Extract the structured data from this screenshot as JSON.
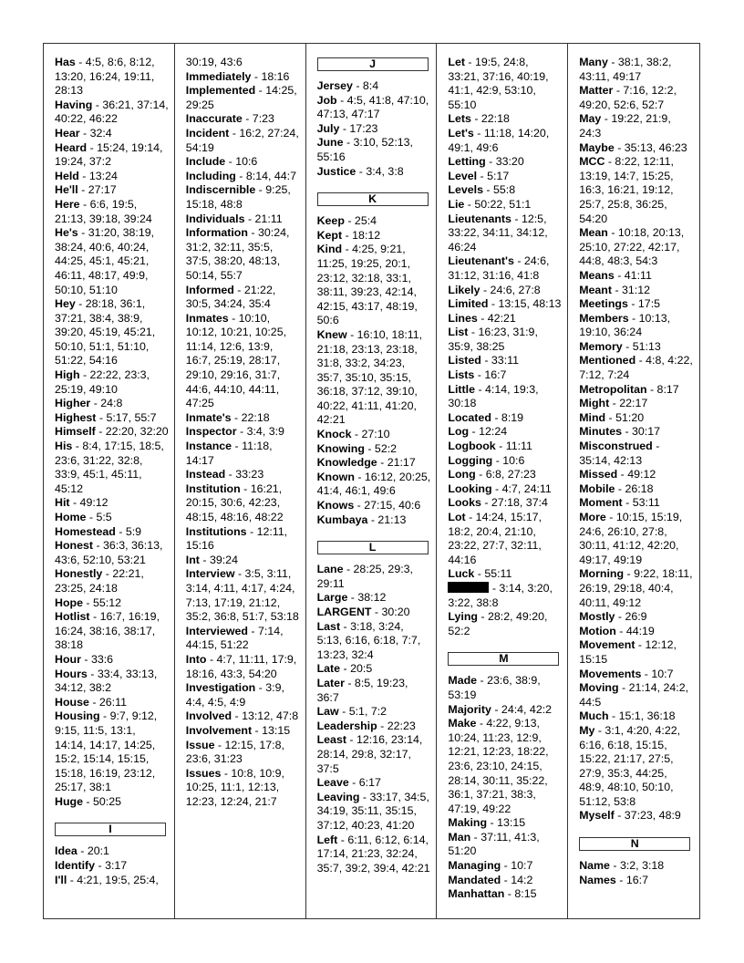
{
  "columns": [
    {
      "items": [
        {
          "term": "Has",
          "refs": "4:5, 8:6, 8:12, 13:20, 16:24, 19:11, 28:13"
        },
        {
          "term": "Having",
          "refs": "36:21, 37:14, 40:22, 46:22"
        },
        {
          "term": "Hear",
          "refs": "32:4"
        },
        {
          "term": "Heard",
          "refs": "15:24, 19:14, 19:24, 37:2"
        },
        {
          "term": "Held",
          "refs": "13:24"
        },
        {
          "term": "He'll",
          "refs": "27:17"
        },
        {
          "term": "Here",
          "refs": "6:6, 19:5, 21:13, 39:18, 39:24"
        },
        {
          "term": "He's",
          "refs": "31:20, 38:19, 38:24, 40:6, 40:24, 44:25, 45:1, 45:21, 46:11, 48:17, 49:9, 50:10, 51:10"
        },
        {
          "term": "Hey",
          "refs": "28:18, 36:1, 37:21, 38:4, 38:9, 39:20, 45:19, 45:21, 50:10, 51:1, 51:10, 51:22, 54:16"
        },
        {
          "term": "High",
          "refs": "22:22, 23:3, 25:19, 49:10"
        },
        {
          "term": "Higher",
          "refs": "24:8"
        },
        {
          "term": "Highest",
          "refs": "5:17, 55:7"
        },
        {
          "term": "Himself",
          "refs": "22:20, 32:20"
        },
        {
          "term": "His",
          "refs": "8:4, 17:15, 18:5, 23:6, 31:22, 32:8, 33:9, 45:1, 45:11, 45:12"
        },
        {
          "term": "Hit",
          "refs": "49:12"
        },
        {
          "term": "Home",
          "refs": "5:5"
        },
        {
          "term": "Homestead",
          "refs": "5:9"
        },
        {
          "term": "Honest",
          "refs": "36:3, 36:13, 43:6, 52:10, 53:21"
        },
        {
          "term": "Honestly",
          "refs": "22:21, 23:25, 24:18"
        },
        {
          "term": "Hope",
          "refs": "55:12"
        },
        {
          "term": "Hotlist",
          "refs": "16:7, 16:19, 16:24, 38:16, 38:17, 38:18"
        },
        {
          "term": "Hour",
          "refs": "33:6"
        },
        {
          "term": "Hours",
          "refs": "33:4, 33:13, 34:12, 38:2"
        },
        {
          "term": "House",
          "refs": "26:11"
        },
        {
          "term": "Housing",
          "refs": "9:7, 9:12, 9:15, 11:5, 13:1, 14:14, 14:17, 14:25, 15:2, 15:14, 15:15, 15:18, 16:19, 23:12, 25:17, 38:1"
        },
        {
          "term": "Huge",
          "refs": "50:25"
        },
        {
          "header": "I"
        },
        {
          "term": "Idea",
          "refs": "20:1"
        },
        {
          "term": "Identify",
          "refs": "3:17"
        },
        {
          "term": "I'll",
          "refs": "4:21, 19:5, 25:4,"
        }
      ]
    },
    {
      "items": [
        {
          "term": "",
          "refs": "30:19, 43:6"
        },
        {
          "term": "Immediately",
          "refs": "18:16"
        },
        {
          "term": "Implemented",
          "refs": "14:25, 29:25"
        },
        {
          "term": "Inaccurate",
          "refs": "7:23"
        },
        {
          "term": "Incident",
          "refs": "16:2, 27:24, 54:19"
        },
        {
          "term": "Include",
          "refs": "10:6"
        },
        {
          "term": "Including",
          "refs": "8:14, 44:7"
        },
        {
          "term": "Indiscernible",
          "refs": "9:25, 15:18, 48:8"
        },
        {
          "term": "Individuals",
          "refs": "21:11"
        },
        {
          "term": "Information",
          "refs": "30:24, 31:2, 32:11, 35:5, 37:5, 38:20, 48:13, 50:14, 55:7"
        },
        {
          "term": "Informed",
          "refs": "21:22, 30:5, 34:24, 35:4"
        },
        {
          "term": "Inmates",
          "refs": "10:10, 10:12, 10:21, 10:25, 11:14, 12:6, 13:9, 16:7, 25:19, 28:17, 29:10, 29:16, 31:7, 44:6, 44:10, 44:11, 47:25"
        },
        {
          "term": "Inmate's",
          "refs": "22:18"
        },
        {
          "term": "Inspector",
          "refs": "3:4, 3:9"
        },
        {
          "term": "Instance",
          "refs": "11:18, 14:17"
        },
        {
          "term": "Instead",
          "refs": "33:23"
        },
        {
          "term": "Institution",
          "refs": "16:21, 20:15, 30:6, 42:23, 48:15, 48:16, 48:22"
        },
        {
          "term": "Institutions",
          "refs": "12:11, 15:16"
        },
        {
          "term": "Int",
          "refs": "39:24"
        },
        {
          "term": "Interview",
          "refs": "3:5, 3:11, 3:14, 4:11, 4:17, 4:24, 7:13, 17:19, 21:12, 35:2, 36:8, 51:7, 53:18"
        },
        {
          "term": "Interviewed",
          "refs": "7:14, 44:15, 51:22"
        },
        {
          "term": "Into",
          "refs": "4:7, 11:11, 17:9, 18:16, 43:3, 54:20"
        },
        {
          "term": "Investigation",
          "refs": "3:9, 4:4, 4:5, 4:9"
        },
        {
          "term": "Involved",
          "refs": "13:12, 47:8"
        },
        {
          "term": "Involvement",
          "refs": "13:15"
        },
        {
          "term": "Issue",
          "refs": "12:15, 17:8, 23:6, 31:23"
        },
        {
          "term": "Issues",
          "refs": "10:8, 10:9, 10:25, 11:1, 12:13, 12:23, 12:24, 21:7"
        }
      ]
    },
    {
      "items": [
        {
          "header": "J"
        },
        {
          "term": "Jersey",
          "refs": "8:4"
        },
        {
          "term": "Job",
          "refs": "4:5, 41:8, 47:10, 47:13, 47:17"
        },
        {
          "term": "July",
          "refs": "17:23"
        },
        {
          "term": "June",
          "refs": "3:10, 52:13, 55:16"
        },
        {
          "term": "Justice",
          "refs": "3:4, 3:8"
        },
        {
          "header": "K"
        },
        {
          "term": "Keep",
          "refs": "25:4"
        },
        {
          "term": "Kept",
          "refs": "18:12"
        },
        {
          "term": "Kind",
          "refs": "4:25, 9:21, 11:25, 19:25, 20:1, 23:12, 32:18, 33:1, 38:11, 39:23, 42:14, 42:15, 43:17, 48:19, 50:6"
        },
        {
          "term": "Knew",
          "refs": "16:10, 18:11, 21:18, 23:13, 23:18, 31:8, 33:2, 34:23, 35:7, 35:10, 35:15, 36:18, 37:12, 39:10, 40:22, 41:11, 41:20, 42:21"
        },
        {
          "term": "Knock",
          "refs": "27:10"
        },
        {
          "term": "Knowing",
          "refs": "52:2"
        },
        {
          "term": "Knowledge",
          "refs": "21:17"
        },
        {
          "term": "Known",
          "refs": "16:12, 20:25, 41:4, 46:1, 49:6"
        },
        {
          "term": "Knows",
          "refs": "27:15, 40:6"
        },
        {
          "term": "Kumbaya",
          "refs": "21:13"
        },
        {
          "header": "L"
        },
        {
          "term": "Lane",
          "refs": "28:25, 29:3, 29:11"
        },
        {
          "term": "Large",
          "refs": "38:12"
        },
        {
          "term": "LARGENT",
          "refs": "30:20"
        },
        {
          "term": "Last",
          "refs": "3:18, 3:24, 5:13, 6:16, 6:18, 7:7, 13:23, 32:4"
        },
        {
          "term": "Late",
          "refs": "20:5"
        },
        {
          "term": "Later",
          "refs": "8:5, 19:23, 36:7"
        },
        {
          "term": "Law",
          "refs": "5:1, 7:2"
        },
        {
          "term": "Leadership",
          "refs": "22:23"
        },
        {
          "term": "Least",
          "refs": "12:16, 23:14, 28:14, 29:8, 32:17, 37:5"
        },
        {
          "term": "Leave",
          "refs": "6:17"
        },
        {
          "term": "Leaving",
          "refs": "33:17, 34:5, 34:19, 35:11, 35:15, 37:12, 40:23, 41:20"
        },
        {
          "term": "Left",
          "refs": "6:11, 6:12, 6:14, 17:14, 21:23, 32:24, 35:7, 39:2, 39:4, 42:21"
        }
      ]
    },
    {
      "items": [
        {
          "term": "Let",
          "refs": "19:5, 24:8, 33:21, 37:16, 40:19, 41:1, 42:9, 53:10, 55:10"
        },
        {
          "term": "Lets",
          "refs": "22:18"
        },
        {
          "term": "Let's",
          "refs": "11:18, 14:20, 49:1, 49:6"
        },
        {
          "term": "Letting",
          "refs": "33:20"
        },
        {
          "term": "Level",
          "refs": "5:17"
        },
        {
          "term": "Levels",
          "refs": "55:8"
        },
        {
          "term": "Lie",
          "refs": "50:22, 51:1"
        },
        {
          "term": "Lieutenants",
          "refs": "12:5, 33:22, 34:11, 34:12, 46:24"
        },
        {
          "term": "Lieutenant's",
          "refs": "24:6, 31:12, 31:16, 41:8"
        },
        {
          "term": "Likely",
          "refs": "24:6, 27:8"
        },
        {
          "term": "Limited",
          "refs": "13:15, 48:13"
        },
        {
          "term": "Lines",
          "refs": "42:21"
        },
        {
          "term": "List",
          "refs": "16:23, 31:9, 35:9, 38:25"
        },
        {
          "term": "Listed",
          "refs": "33:11"
        },
        {
          "term": "Lists",
          "refs": "16:7"
        },
        {
          "term": "Little",
          "refs": "4:14, 19:3, 30:18"
        },
        {
          "term": "Located",
          "refs": "8:19"
        },
        {
          "term": "Log",
          "refs": "12:24"
        },
        {
          "term": "Logbook",
          "refs": "11:11"
        },
        {
          "term": "Logging",
          "refs": "10:6"
        },
        {
          "term": "Long",
          "refs": "6:8, 27:23"
        },
        {
          "term": "Looking",
          "refs": "4:7, 24:11"
        },
        {
          "term": "Looks",
          "refs": "27:18, 37:4"
        },
        {
          "term": "Lot",
          "refs": "14:24, 15:17, 18:2, 20:4, 21:10, 23:22, 27:7, 32:11, 44:16"
        },
        {
          "term": "Luck",
          "refs": "55:11"
        },
        {
          "redacted": true,
          "refs": "3:14, 3:20, 3:22, 38:8"
        },
        {
          "term": "Lying",
          "refs": "28:2, 49:20, 52:2"
        },
        {
          "header": "M"
        },
        {
          "term": "Made",
          "refs": "23:6, 38:9, 53:19"
        },
        {
          "term": "Majority",
          "refs": "24:4, 42:2"
        },
        {
          "term": "Make",
          "refs": "4:22, 9:13, 10:24, 11:23, 12:9, 12:21, 12:23, 18:22, 23:6, 23:10, 24:15, 28:14, 30:11, 35:22, 36:1, 37:21, 38:3, 47:19, 49:22"
        },
        {
          "term": "Making",
          "refs": "13:15"
        },
        {
          "term": "Man",
          "refs": "37:11, 41:3, 51:20"
        },
        {
          "term": "Managing",
          "refs": "10:7"
        },
        {
          "term": "Mandated",
          "refs": "14:2"
        },
        {
          "term": "Manhattan",
          "refs": "8:15"
        }
      ]
    },
    {
      "items": [
        {
          "term": "Many",
          "refs": "38:1, 38:2, 43:11, 49:17"
        },
        {
          "term": "Matter",
          "refs": "7:16, 12:2, 49:20, 52:6, 52:7"
        },
        {
          "term": "May",
          "refs": "19:22, 21:9, 24:3"
        },
        {
          "term": "Maybe",
          "refs": "35:13, 46:23"
        },
        {
          "term": "MCC",
          "refs": "8:22, 12:11, 13:19, 14:7, 15:25, 16:3, 16:21, 19:12, 25:7, 25:8, 36:25, 54:20"
        },
        {
          "term": "Mean",
          "refs": "10:18, 20:13, 25:10, 27:22, 42:17, 44:8, 48:3, 54:3"
        },
        {
          "term": "Means",
          "refs": "41:11"
        },
        {
          "term": "Meant",
          "refs": "31:12"
        },
        {
          "term": "Meetings",
          "refs": "17:5"
        },
        {
          "term": "Members",
          "refs": "10:13, 19:10, 36:24"
        },
        {
          "term": "Memory",
          "refs": "51:13"
        },
        {
          "term": "Mentioned",
          "refs": "4:8, 4:22, 7:12, 7:24"
        },
        {
          "term": "Metropolitan",
          "refs": "8:17"
        },
        {
          "term": "Might",
          "refs": "22:17"
        },
        {
          "term": "Mind",
          "refs": "51:20"
        },
        {
          "term": "Minutes",
          "refs": "30:17"
        },
        {
          "term": "Misconstrued",
          "refs": "35:14, 42:13"
        },
        {
          "term": "Missed",
          "refs": "49:12"
        },
        {
          "term": "Mobile",
          "refs": "26:18"
        },
        {
          "term": "Moment",
          "refs": "53:11"
        },
        {
          "term": "More",
          "refs": "10:15, 15:19, 24:6, 26:10, 27:8, 30:11, 41:12, 42:20, 49:17, 49:19"
        },
        {
          "term": "Morning",
          "refs": "9:22, 18:11, 26:19, 29:18, 40:4, 40:11, 49:12"
        },
        {
          "term": "Mostly",
          "refs": "26:9"
        },
        {
          "term": "Motion",
          "refs": "44:19"
        },
        {
          "term": "Movement",
          "refs": "12:12, 15:15"
        },
        {
          "term": "Movements",
          "refs": "10:7"
        },
        {
          "term": "Moving",
          "refs": "21:14, 24:2, 44:5"
        },
        {
          "term": "Much",
          "refs": "15:1, 36:18"
        },
        {
          "term": "My",
          "refs": "3:1, 4:20, 4:22, 6:16, 6:18, 15:15, 15:22, 21:17, 27:5, 27:9, 35:3, 44:25, 48:9, 48:10, 50:10, 51:12, 53:8"
        },
        {
          "term": "Myself",
          "refs": "37:23, 48:9"
        },
        {
          "header": "N"
        },
        {
          "term": "Name",
          "refs": "3:2, 3:18"
        },
        {
          "term": "Names",
          "refs": "16:7"
        }
      ]
    }
  ]
}
